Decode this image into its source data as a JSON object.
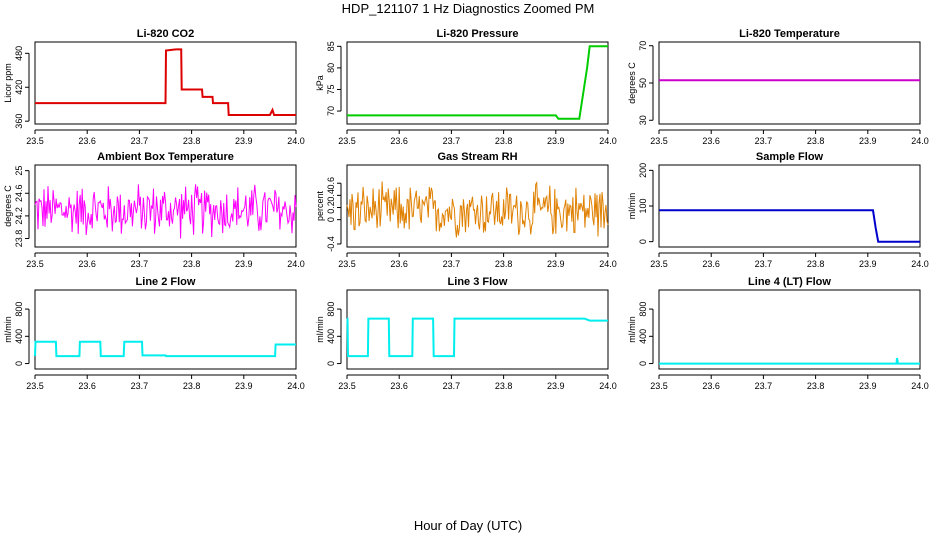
{
  "title": "HDP_121107  1 Hz Diagnostics Zoomed PM",
  "xlabel": "Hour of Day (UTC)",
  "chart_data": [
    {
      "type": "line",
      "title": "Li-820 CO2",
      "ylabel": "Licor ppm",
      "color": "#dd0000",
      "xlim": [
        23.5,
        24.0
      ],
      "ylim": [
        355,
        500
      ],
      "xticks": [
        23.5,
        23.6,
        23.7,
        23.8,
        23.9,
        24.0
      ],
      "yticks": [
        360,
        420,
        480
      ],
      "x": [
        23.5,
        23.75,
        23.751,
        23.77,
        23.78,
        23.781,
        23.82,
        23.821,
        23.84,
        23.841,
        23.87,
        23.871,
        23.95,
        23.955,
        23.958,
        23.96,
        24.0
      ],
      "y": [
        392,
        392,
        485,
        487,
        487,
        416,
        416,
        403,
        403,
        392,
        392,
        371,
        371,
        380,
        371,
        371,
        371
      ]
    },
    {
      "type": "line",
      "title": "Li-820 Pressure",
      "ylabel": "kPa",
      "color": "#00cc00",
      "xlim": [
        23.5,
        24.0
      ],
      "ylim": [
        67,
        86
      ],
      "xticks": [
        23.5,
        23.6,
        23.7,
        23.8,
        23.9,
        24.0
      ],
      "yticks": [
        70,
        75,
        80,
        85
      ],
      "x": [
        23.5,
        23.9,
        23.905,
        23.945,
        23.96,
        23.965,
        23.97,
        24.0
      ],
      "y": [
        69,
        69,
        68.2,
        68.2,
        80,
        85,
        85,
        85
      ]
    },
    {
      "type": "line",
      "title": "Li-820 Temperature",
      "ylabel": "degrees C",
      "color": "#cc00cc",
      "xlim": [
        23.5,
        24.0
      ],
      "ylim": [
        28,
        72
      ],
      "xticks": [
        23.5,
        23.6,
        23.7,
        23.8,
        23.9,
        24.0
      ],
      "yticks": [
        30,
        50,
        70
      ],
      "x": [
        23.5,
        24.0
      ],
      "y": [
        51.5,
        51.5
      ]
    },
    {
      "type": "line",
      "title": "Ambient Box Temperature",
      "ylabel": "degrees C",
      "color": "#ff00ff",
      "xlim": [
        23.5,
        24.0
      ],
      "ylim": [
        23.65,
        25.1
      ],
      "xticks": [
        23.5,
        23.6,
        23.7,
        23.8,
        23.9,
        24.0
      ],
      "yticks": [
        23.8,
        24.2,
        24.6,
        25.0
      ],
      "noise": {
        "center": 24.3,
        "amp": 0.55
      }
    },
    {
      "type": "line",
      "title": "Gas Stream RH",
      "ylabel": "percent",
      "color": "#e08000",
      "xlim": [
        23.5,
        24.0
      ],
      "ylim": [
        -0.45,
        0.9
      ],
      "xticks": [
        23.5,
        23.6,
        23.7,
        23.8,
        23.9,
        24.0
      ],
      "yticks": [
        -0.4,
        0,
        0.2,
        0.4,
        0.6
      ],
      "ytick_labels": [
        "-0.4",
        "0",
        "0.2",
        "0.4",
        "0.6"
      ],
      "noise": {
        "center": 0.15,
        "amp": 0.5
      }
    },
    {
      "type": "line",
      "title": "Sample Flow",
      "ylabel": "ml/min",
      "color": "#0000cc",
      "xlim": [
        23.5,
        24.0
      ],
      "ylim": [
        -15,
        215
      ],
      "xticks": [
        23.5,
        23.6,
        23.7,
        23.8,
        23.9,
        24.0
      ],
      "yticks": [
        0,
        100,
        200
      ],
      "x": [
        23.5,
        23.91,
        23.915,
        23.92,
        24.0
      ],
      "y": [
        88,
        88,
        40,
        0,
        0
      ]
    },
    {
      "type": "line",
      "title": "Line 2 Flow",
      "ylabel": "ml/min",
      "color": "#00eeee",
      "xlim": [
        23.5,
        24.0
      ],
      "ylim": [
        -80,
        1080
      ],
      "xticks": [
        23.5,
        23.6,
        23.7,
        23.8,
        23.9,
        24.0
      ],
      "yticks": [
        0,
        400,
        800
      ],
      "x": [
        23.5,
        23.501,
        23.54,
        23.541,
        23.585,
        23.586,
        23.625,
        23.626,
        23.67,
        23.671,
        23.705,
        23.706,
        23.75,
        23.751,
        23.96,
        23.961,
        24.0
      ],
      "y": [
        110,
        320,
        320,
        110,
        110,
        320,
        320,
        110,
        110,
        320,
        320,
        120,
        120,
        110,
        110,
        280,
        280
      ]
    },
    {
      "type": "line",
      "title": "Line 3 Flow",
      "ylabel": "ml/min",
      "color": "#00eeee",
      "xlim": [
        23.5,
        24.0
      ],
      "ylim": [
        -80,
        1080
      ],
      "xticks": [
        23.5,
        23.6,
        23.7,
        23.8,
        23.9,
        24.0
      ],
      "yticks": [
        0,
        400,
        800
      ],
      "x": [
        23.5,
        23.501,
        23.502,
        23.54,
        23.541,
        23.58,
        23.581,
        23.625,
        23.626,
        23.665,
        23.666,
        23.705,
        23.706,
        23.955,
        23.965,
        24.0
      ],
      "y": [
        660,
        660,
        110,
        110,
        660,
        660,
        110,
        110,
        660,
        660,
        110,
        110,
        660,
        660,
        630,
        630
      ]
    },
    {
      "type": "line",
      "title": "Line 4 (LT) Flow",
      "ylabel": "ml/min",
      "color": "#00eeee",
      "xlim": [
        23.5,
        24.0
      ],
      "ylim": [
        -80,
        1080
      ],
      "xticks": [
        23.5,
        23.6,
        23.7,
        23.8,
        23.9,
        24.0
      ],
      "yticks": [
        0,
        400,
        800
      ],
      "x": [
        23.5,
        23.955,
        23.956,
        23.958,
        24.0
      ],
      "y": [
        0,
        0,
        80,
        0,
        0
      ]
    }
  ]
}
